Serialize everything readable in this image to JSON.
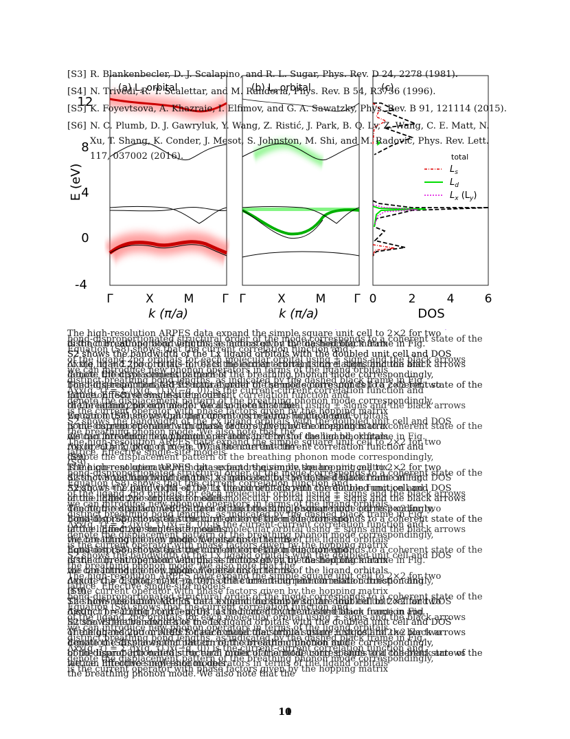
{
  "references": [
    {
      "tag": "[S3]",
      "text": "R. Blankenbecler, D. J. Scalapino, and R. L. Sugar, Phys. Rev. D 24, 2278 (1981)."
    },
    {
      "tag": "[S4]",
      "text": "N. Trivedi, R. T. Scalettar, and M. Randeria, Phys. Rev. B 54, R3756 (1996)."
    },
    {
      "tag": "[S5]",
      "text": "K. Foyevtsova, A. Khazraie, I. Elfimov, and G. A. Sawatzky, Phys. Rev. B 91, 121114 (2015)."
    },
    {
      "tag": "[S6]",
      "text": "N. C. Plumb, D. J. Gawryluk, Y. Wang, Z. Ristić, J. Park, B. Q. Lv, Z. Wang, C. E. Matt, N. Xu, T. Shang, K. Conder, J. Mesot, S. Johnston, M. Shi, and M. Radović, Phys. Rev. Lett. 117, 037002 (2016)."
    }
  ],
  "figure": {
    "panel_a_title": "(a) L",
    "panel_a_sub": "s",
    "panel_a_suffix": " orbital",
    "panel_b_title": "(b) L",
    "panel_b_sub": "s",
    "panel_b_suffix": " orbital",
    "panel_c_title": "(c)",
    "ylabel": "E (eV)",
    "yticks": [
      "12",
      "8",
      "4",
      "0",
      "-4"
    ],
    "kticks": [
      "Γ",
      "X",
      "M",
      "Γ"
    ],
    "xlabel_k": "k (π/a)",
    "dos_ticks": [
      "0",
      "2",
      "4",
      "6"
    ],
    "xlabel_dos": "DOS",
    "legend_total": "total",
    "legend_ls": "L",
    "legend_ls_sub": "s",
    "legend_ld": "L",
    "legend_ld_sub": "d",
    "legend_lx": "L",
    "legend_lx_sub": "x",
    "legend_lx_paren": "(L",
    "legend_lx_paren_sub": "y",
    "colors": {
      "ls": "#e00000",
      "ld": "#00dd00",
      "lx": "#dd00dd",
      "overlay": "#6a00d8"
    }
  },
  "overlay_lines": [
    "The high-resolution ARPES data expand the simple square unit cell to 2×2 for two",
    "distinct breathing bond lengths, as indicated by the dashed black frame in Fig.",
    "S2 shows the bandwidth of the Lx ligand orbitals with the doubled unit cell and DOS",
    "of the ligand 2pσ orbitals for each molecular orbital using ± signs and the black arrows",
    "denote the displacement pattern of the breathing phonon mode correspondingly,",
    "bond-disproportionated structural order of the mode corresponds to a coherent state of the",
    "lattice. Effective single-site models",
    "the breathing phonon mode. We also note that the",
    "Equation (S8) shows that the current correlation function and",
    "is the current operator with phase factors given by the hopping matrix",
    "we can introduce new phonon operators in terms of the ligand orbitals",
    "Λxx(q, τ) = Σ ⟨jx(q, τ) jx(−q, 0)⟩ is the current-current correlation function and",
    "(S9)"
  ],
  "page_numbers": [
    "10",
    "11"
  ]
}
